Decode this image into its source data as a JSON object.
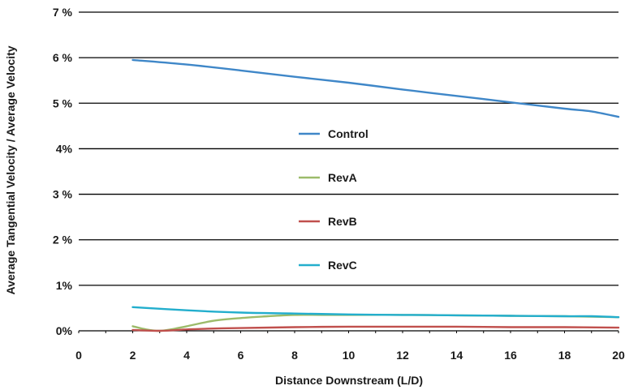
{
  "chart_data": {
    "type": "line",
    "title": "",
    "xlabel": "Distance Downstream (L/D)",
    "ylabel": "Average Tangential Velocity / Average Velocity",
    "xlim": [
      0,
      20
    ],
    "ylim": [
      0,
      7
    ],
    "x_ticks": [
      0,
      2,
      4,
      6,
      8,
      10,
      12,
      14,
      16,
      18,
      20
    ],
    "x_tick_labels": [
      "0",
      "2",
      "4",
      "6",
      "8",
      "10",
      "12",
      "14",
      "16",
      "18",
      "20"
    ],
    "y_ticks": [
      0,
      1,
      2,
      3,
      4,
      5,
      6,
      7
    ],
    "y_tick_labels": [
      "0%",
      "1%",
      "2 %",
      "3 %",
      "4%",
      "5 %",
      "6 %",
      "7 %"
    ],
    "grid": "horizontal",
    "legend_position": "center",
    "series": [
      {
        "name": "Control",
        "color": "#3f87c8",
        "x": [
          2,
          4,
          6,
          8,
          10,
          12,
          14,
          16,
          18,
          19,
          20
        ],
        "y": [
          5.95,
          5.85,
          5.72,
          5.58,
          5.45,
          5.3,
          5.16,
          5.02,
          4.88,
          4.82,
          4.7
        ]
      },
      {
        "name": "RevA",
        "color": "#9cbb6a",
        "x": [
          2,
          2.5,
          3,
          3.5,
          4,
          5,
          6,
          7,
          8,
          9,
          10,
          12,
          14,
          16,
          18,
          20
        ],
        "y": [
          0.1,
          0.03,
          0.0,
          0.04,
          0.1,
          0.22,
          0.28,
          0.32,
          0.35,
          0.35,
          0.35,
          0.35,
          0.34,
          0.33,
          0.32,
          0.3
        ]
      },
      {
        "name": "RevB",
        "color": "#c0504d",
        "x": [
          2,
          3,
          4,
          5,
          6,
          8,
          10,
          12,
          14,
          16,
          18,
          20
        ],
        "y": [
          0.02,
          0.0,
          0.03,
          0.05,
          0.06,
          0.08,
          0.09,
          0.09,
          0.09,
          0.08,
          0.08,
          0.07
        ]
      },
      {
        "name": "RevC",
        "color": "#23aecd",
        "x": [
          2,
          4,
          6,
          8,
          10,
          12,
          14,
          16,
          18,
          19,
          20
        ],
        "y": [
          0.52,
          0.45,
          0.4,
          0.38,
          0.36,
          0.35,
          0.34,
          0.33,
          0.32,
          0.32,
          0.3
        ]
      }
    ]
  }
}
